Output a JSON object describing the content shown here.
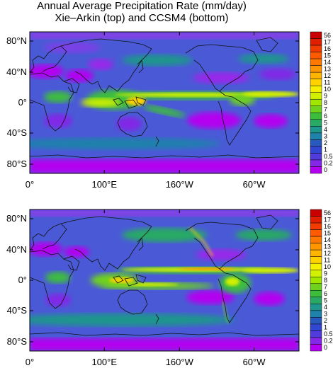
{
  "title": {
    "line1": "Annual Average Precipitation Rate (mm/day)",
    "line2": "Xie–Arkin (top) and CCSM4 (bottom)"
  },
  "panels": [
    {
      "id": "top",
      "dataset": "Xie–Arkin"
    },
    {
      "id": "bottom",
      "dataset": "CCSM4"
    }
  ],
  "lat_ticks": [
    "80°N",
    "40°N",
    "0°",
    "40°S",
    "80°S"
  ],
  "lon_ticks": [
    "0°",
    "100°E",
    "160°W",
    "60°W"
  ],
  "colorbar": {
    "labels": [
      "56",
      "17",
      "16",
      "15",
      "14",
      "13",
      "12",
      "11",
      "10",
      "9",
      "8",
      "7",
      "6",
      "5",
      "4",
      "3",
      "2",
      "1",
      "0.5",
      "0.2",
      "0"
    ],
    "colors": [
      "#c80000",
      "#e01e00",
      "#f03c00",
      "#ff5a00",
      "#ff7800",
      "#ff9600",
      "#ffb400",
      "#ffd200",
      "#f5f000",
      "#d2f000",
      "#a0e600",
      "#6ed21e",
      "#3cbe3c",
      "#28aa64",
      "#1e968c",
      "#1e82aa",
      "#285abe",
      "#3246d2",
      "#503cdc",
      "#8228e6",
      "#b400f0"
    ]
  },
  "colors": {
    "background_field": "#4a5ad6",
    "dry": "#b400f0",
    "wet": "#d2f000"
  }
}
